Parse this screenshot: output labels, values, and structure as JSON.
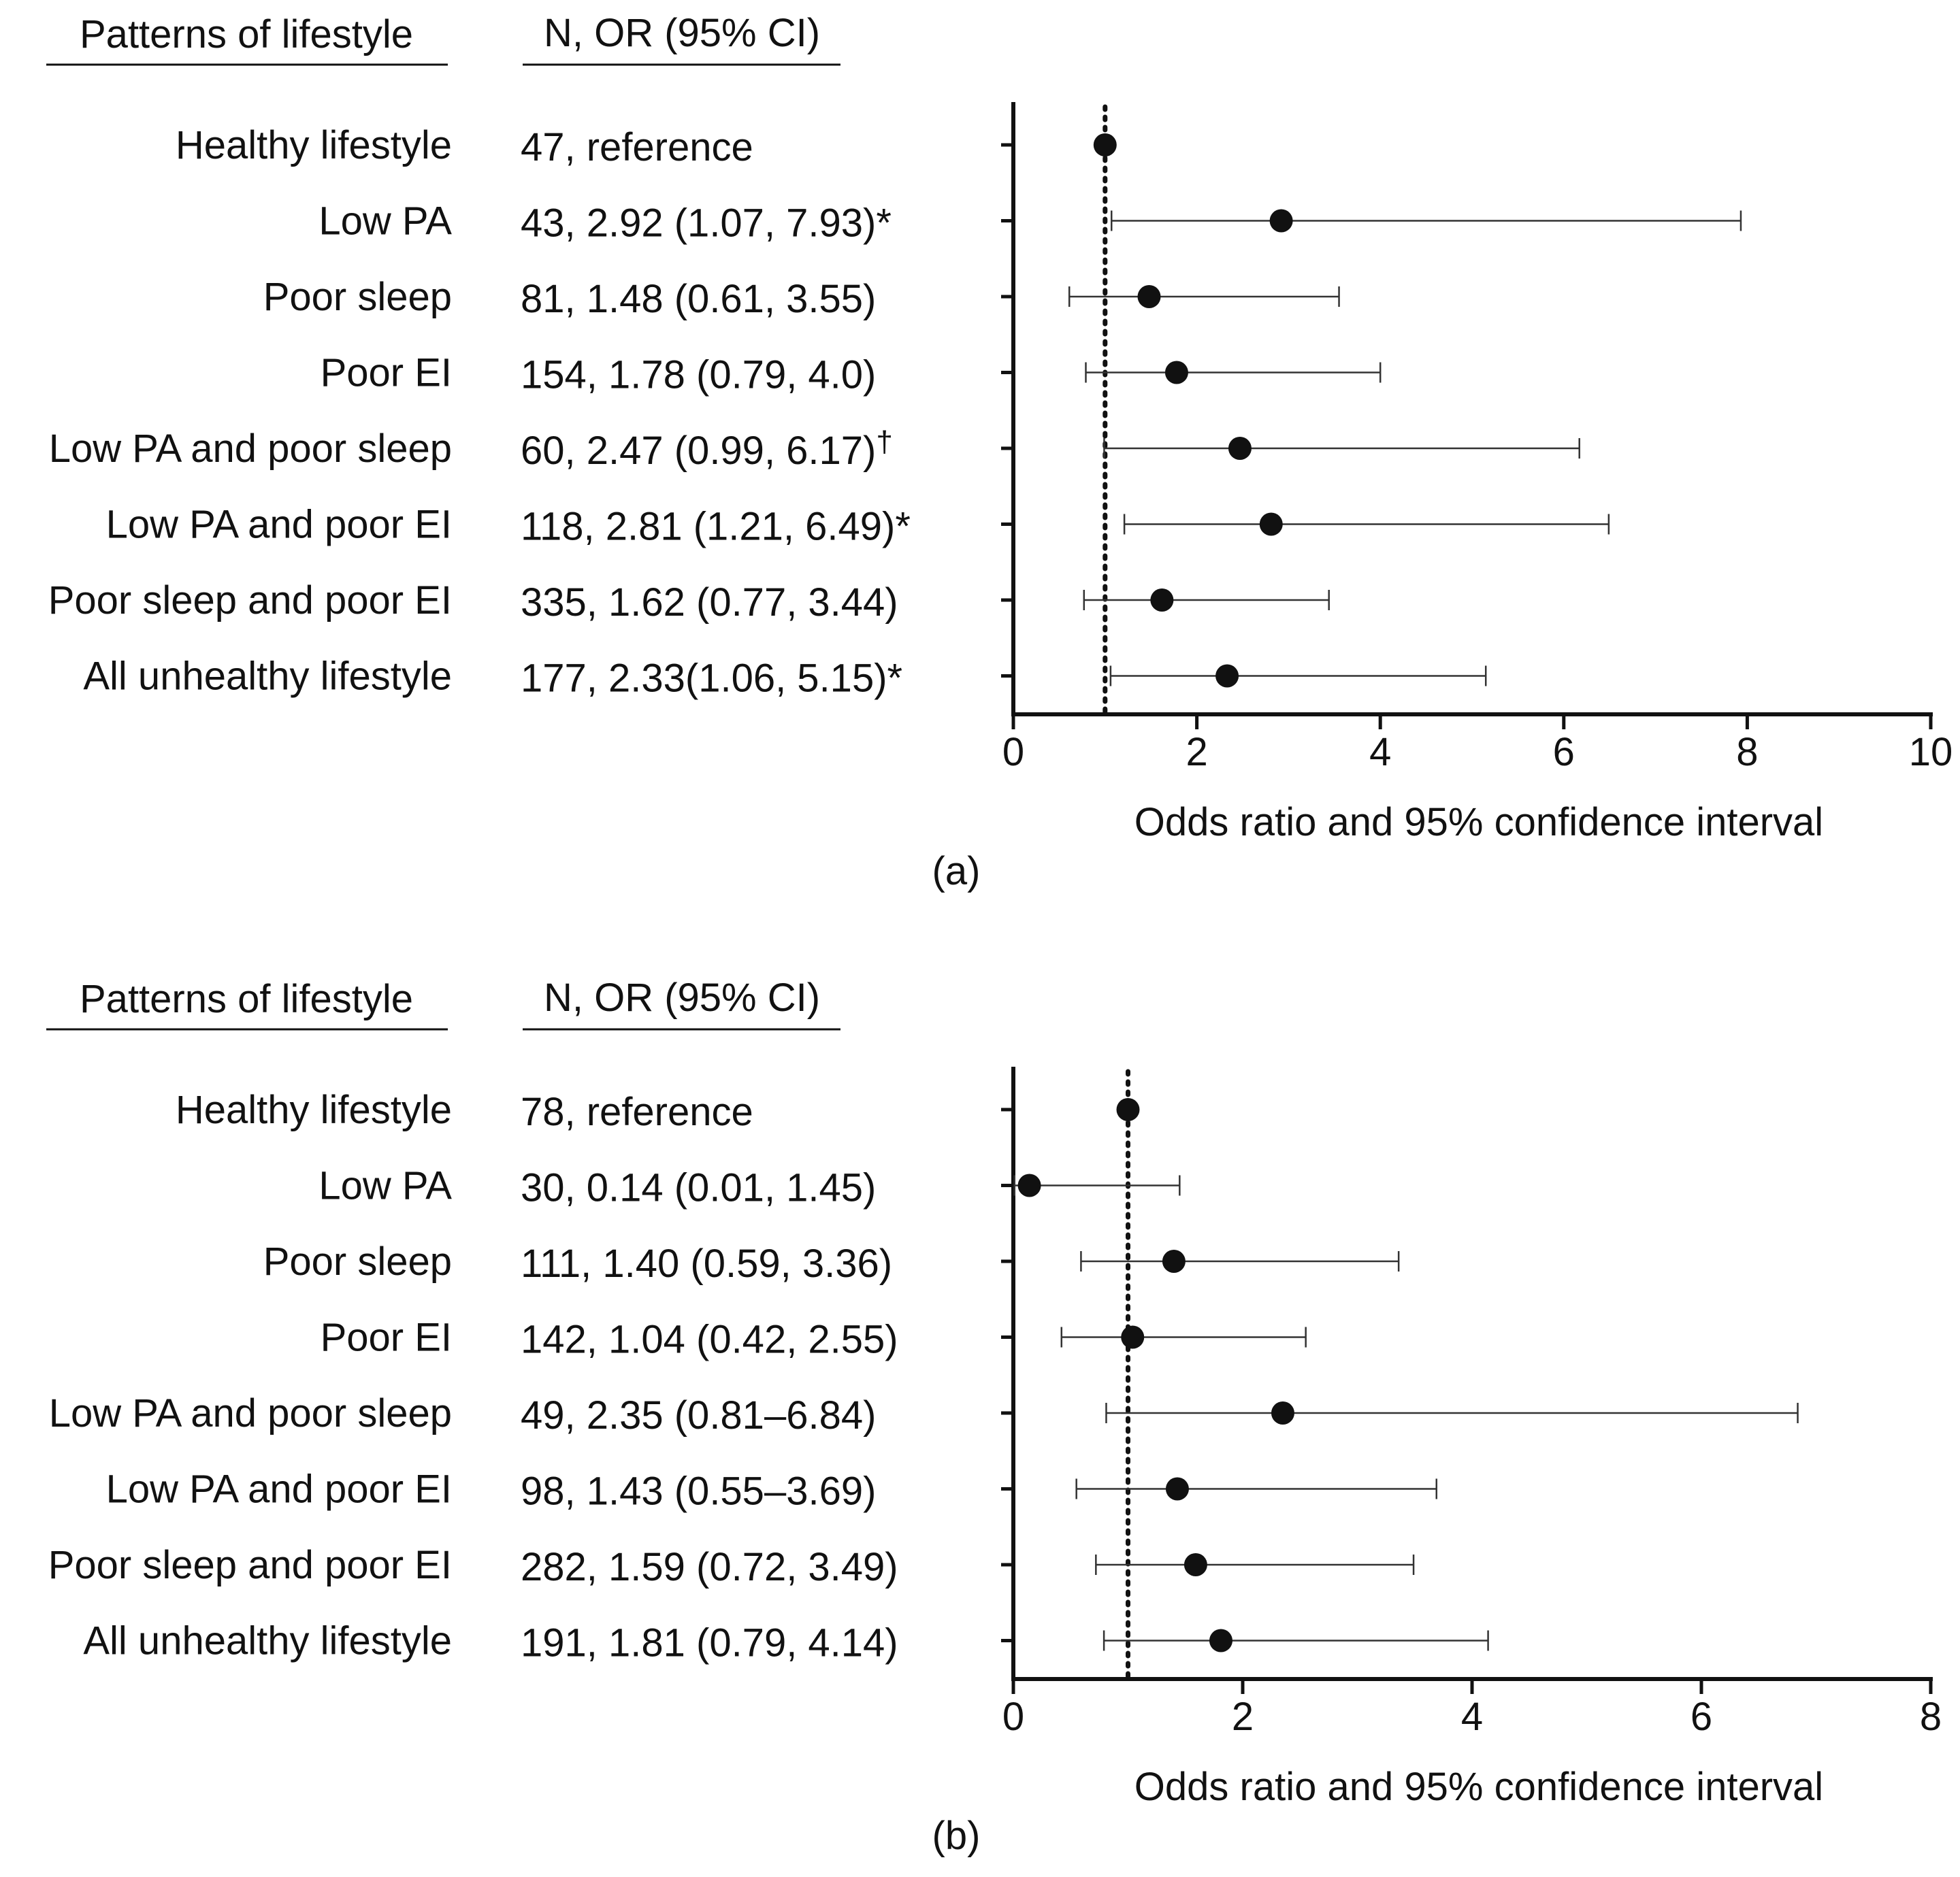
{
  "chart_data": [
    {
      "type": "forest",
      "panel_label": "(a)",
      "col1_header": "Patterns of lifestyle",
      "col2_header": "N, OR (95% CI)",
      "xlabel": "Odds ratio and 95% confidence interval",
      "xlim": [
        0,
        10
      ],
      "xticks": [
        0,
        2,
        4,
        6,
        8,
        10
      ],
      "xtick_labels": [
        "0",
        "2",
        "4",
        "6",
        "8",
        "10"
      ],
      "reference_line": 1,
      "rows": [
        {
          "label": "Healthy lifestyle",
          "text": "47, reference",
          "mark": "",
          "or": 1.0,
          "lo": null,
          "hi": null
        },
        {
          "label": "Low PA",
          "text": "43, 2.92 (1.07, 7.93)",
          "mark": "*",
          "or": 2.92,
          "lo": 1.07,
          "hi": 7.93
        },
        {
          "label": "Poor sleep",
          "text": "81, 1.48 (0.61, 3.55)",
          "mark": "",
          "or": 1.48,
          "lo": 0.61,
          "hi": 3.55
        },
        {
          "label": "Poor EI",
          "text": "154, 1.78 (0.79, 4.0)",
          "mark": "",
          "or": 1.78,
          "lo": 0.79,
          "hi": 4.0
        },
        {
          "label": "Low PA and poor sleep",
          "text": "60, 2.47 (0.99, 6.17)",
          "mark": "†",
          "or": 2.47,
          "lo": 0.99,
          "hi": 6.17
        },
        {
          "label": "Low PA and poor EI",
          "text": "118, 2.81 (1.21, 6.49)",
          "mark": "*",
          "or": 2.81,
          "lo": 1.21,
          "hi": 6.49
        },
        {
          "label": "Poor sleep and poor EI",
          "text": "335, 1.62 (0.77, 3.44)",
          "mark": "",
          "or": 1.62,
          "lo": 0.77,
          "hi": 3.44
        },
        {
          "label": "All unhealthy lifestyle",
          "text": "177, 2.33(1.06, 5.15)",
          "mark": "*",
          "or": 2.33,
          "lo": 1.06,
          "hi": 5.15
        }
      ]
    },
    {
      "type": "forest",
      "panel_label": "(b)",
      "col1_header": "Patterns of lifestyle",
      "col2_header": "N, OR (95% CI)",
      "xlabel": "Odds ratio and 95% confidence interval",
      "xlim": [
        0,
        8
      ],
      "xticks": [
        0,
        2,
        4,
        6,
        8
      ],
      "xtick_labels": [
        "0",
        "2",
        "4",
        "6",
        "8"
      ],
      "reference_line": 1,
      "rows": [
        {
          "label": "Healthy lifestyle",
          "text": "78, reference",
          "mark": "",
          "or": 1.0,
          "lo": null,
          "hi": null
        },
        {
          "label": "Low PA",
          "text": "30, 0.14 (0.01, 1.45)",
          "mark": "",
          "or": 0.14,
          "lo": 0.01,
          "hi": 1.45
        },
        {
          "label": "Poor sleep",
          "text": "111, 1.40 (0.59, 3.36)",
          "mark": "",
          "or": 1.4,
          "lo": 0.59,
          "hi": 3.36
        },
        {
          "label": "Poor EI",
          "text": "142, 1.04 (0.42, 2.55)",
          "mark": "",
          "or": 1.04,
          "lo": 0.42,
          "hi": 2.55
        },
        {
          "label": "Low PA and poor sleep",
          "text": "49, 2.35 (0.81–6.84)",
          "mark": "",
          "or": 2.35,
          "lo": 0.81,
          "hi": 6.84
        },
        {
          "label": "Low PA and poor EI",
          "text": "98, 1.43 (0.55–3.69)",
          "mark": "",
          "or": 1.43,
          "lo": 0.55,
          "hi": 3.69
        },
        {
          "label": "Poor sleep and poor EI",
          "text": "282, 1.59 (0.72, 3.49)",
          "mark": "",
          "or": 1.59,
          "lo": 0.72,
          "hi": 3.49
        },
        {
          "label": "All unhealthy lifestyle",
          "text": "191, 1.81 (0.79, 4.14)",
          "mark": "",
          "or": 1.81,
          "lo": 0.79,
          "hi": 4.14
        }
      ]
    }
  ],
  "colors": {
    "ink": "#111111",
    "whisker": "#333333",
    "background": "#ffffff"
  }
}
